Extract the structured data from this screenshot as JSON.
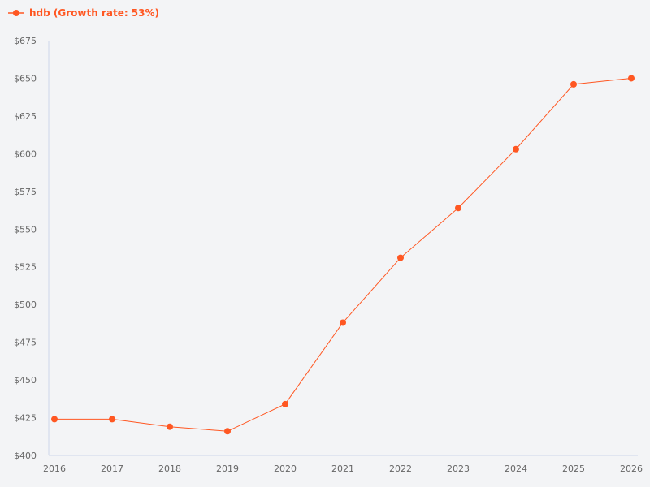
{
  "chart_data": {
    "type": "line",
    "title": "",
    "xlabel": "",
    "ylabel": "",
    "categories": [
      "2016",
      "2017",
      "2018",
      "2019",
      "2020",
      "2021",
      "2022",
      "2023",
      "2024",
      "2025",
      "2026"
    ],
    "series": [
      {
        "name": "hdb (Growth rate: 53%)",
        "color": "#ff5722",
        "values": [
          424,
          424,
          419,
          416,
          434,
          488,
          531,
          564,
          603,
          646,
          650
        ]
      }
    ],
    "ylim": [
      400,
      675
    ],
    "yticks": [
      400,
      425,
      450,
      475,
      500,
      525,
      550,
      575,
      600,
      625,
      650,
      675
    ],
    "ytick_prefix": "$",
    "grid": false,
    "legend": "top-left"
  }
}
